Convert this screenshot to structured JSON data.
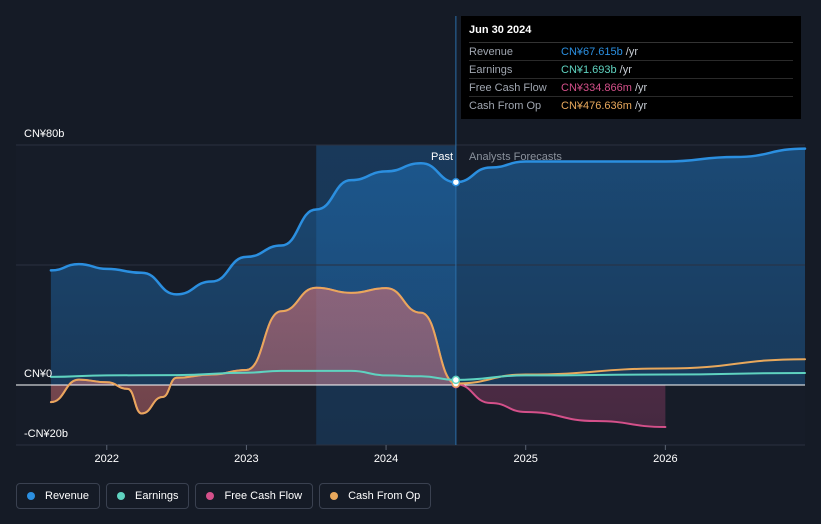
{
  "tooltip": {
    "date": "Jun 30 2024",
    "rows": [
      {
        "name": "Revenue",
        "value": "CN¥67.615b",
        "unit": "/yr",
        "color": "#2b8fe0"
      },
      {
        "name": "Earnings",
        "value": "CN¥1.693b",
        "unit": "/yr",
        "color": "#5fd3c0"
      },
      {
        "name": "Free Cash Flow",
        "value": "CN¥334.866m",
        "unit": "/yr",
        "color": "#d4508a"
      },
      {
        "name": "Cash From Op",
        "value": "CN¥476.636m",
        "unit": "/yr",
        "color": "#e8a85c"
      }
    ]
  },
  "divider": {
    "past_label": "Past",
    "forecast_label": "Analysts Forecasts"
  },
  "legend": [
    {
      "name": "Revenue",
      "color": "#2b8fe0"
    },
    {
      "name": "Earnings",
      "color": "#5fd3c0"
    },
    {
      "name": "Free Cash Flow",
      "color": "#d4508a"
    },
    {
      "name": "Cash From Op",
      "color": "#e8a85c"
    }
  ],
  "chart_data": {
    "type": "line",
    "ylim": [
      -20,
      80
    ],
    "y_ticks": [
      {
        "value": 80,
        "label": "CN¥80b"
      },
      {
        "value": 0,
        "label": "CN¥0"
      },
      {
        "value": -20,
        "label": "-CN¥20b"
      }
    ],
    "x_ticks": [
      {
        "value": 2022,
        "label": "2022"
      },
      {
        "value": 2023,
        "label": "2023"
      },
      {
        "value": 2024,
        "label": "2024"
      },
      {
        "value": 2025,
        "label": "2025"
      },
      {
        "value": 2026,
        "label": "2026"
      }
    ],
    "xlim": [
      2021.35,
      2027.0
    ],
    "highlight_range": [
      2023.5,
      2024.5
    ],
    "past_forecast_split": 2024.5,
    "series": [
      {
        "name": "Revenue",
        "color": "#2b8fe0",
        "points": [
          [
            2021.6,
            38.2
          ],
          [
            2021.8,
            40.3
          ],
          [
            2022.0,
            38.7
          ],
          [
            2022.25,
            37.4
          ],
          [
            2022.5,
            30.2
          ],
          [
            2022.75,
            34.5
          ],
          [
            2023.0,
            42.7
          ],
          [
            2023.25,
            46.5
          ],
          [
            2023.5,
            58.5
          ],
          [
            2023.75,
            68.3
          ],
          [
            2024.0,
            71.2
          ],
          [
            2024.25,
            73.9
          ],
          [
            2024.5,
            67.6
          ],
          [
            2024.75,
            72.5
          ],
          [
            2025.0,
            74.5
          ],
          [
            2025.5,
            74.5
          ],
          [
            2026.0,
            74.5
          ],
          [
            2026.5,
            76.0
          ],
          [
            2027.0,
            78.8
          ]
        ]
      },
      {
        "name": "Earnings",
        "color": "#5fd3c0",
        "points": [
          [
            2021.6,
            2.7
          ],
          [
            2022.0,
            3.2
          ],
          [
            2022.5,
            3.3
          ],
          [
            2023.0,
            4.1
          ],
          [
            2023.25,
            4.7
          ],
          [
            2023.75,
            4.7
          ],
          [
            2024.0,
            3.2
          ],
          [
            2024.25,
            2.9
          ],
          [
            2024.5,
            1.7
          ],
          [
            2025.0,
            3.2
          ],
          [
            2026.0,
            3.5
          ],
          [
            2027.0,
            4.0
          ]
        ]
      },
      {
        "name": "Free Cash Flow",
        "color": "#d4508a",
        "points": [
          [
            2021.6,
            -5.7
          ],
          [
            2021.8,
            1.8
          ],
          [
            2022.0,
            0.9
          ],
          [
            2022.15,
            -1.3
          ],
          [
            2022.25,
            -9.5
          ],
          [
            2022.4,
            -4.0
          ],
          [
            2022.5,
            2.4
          ],
          [
            2022.75,
            3.5
          ],
          [
            2023.0,
            5.0
          ],
          [
            2023.25,
            24.6
          ],
          [
            2023.5,
            32.4
          ],
          [
            2023.75,
            30.7
          ],
          [
            2024.0,
            32.3
          ],
          [
            2024.25,
            24.1
          ],
          [
            2024.5,
            0.3
          ],
          [
            2024.75,
            -6.0
          ],
          [
            2025.0,
            -9.0
          ],
          [
            2025.5,
            -12.0
          ],
          [
            2026.0,
            -14.0
          ]
        ]
      },
      {
        "name": "Cash From Op",
        "color": "#e8a85c",
        "points": [
          [
            2021.6,
            -5.7
          ],
          [
            2021.8,
            1.8
          ],
          [
            2022.0,
            0.9
          ],
          [
            2022.15,
            -1.3
          ],
          [
            2022.25,
            -9.5
          ],
          [
            2022.4,
            -4.0
          ],
          [
            2022.5,
            2.4
          ],
          [
            2022.75,
            3.5
          ],
          [
            2023.0,
            5.0
          ],
          [
            2023.25,
            24.6
          ],
          [
            2023.5,
            32.4
          ],
          [
            2023.75,
            30.7
          ],
          [
            2024.0,
            32.3
          ],
          [
            2024.25,
            24.1
          ],
          [
            2024.5,
            0.5
          ],
          [
            2025.0,
            3.5
          ],
          [
            2026.0,
            5.5
          ],
          [
            2027.0,
            8.6
          ]
        ]
      }
    ]
  }
}
